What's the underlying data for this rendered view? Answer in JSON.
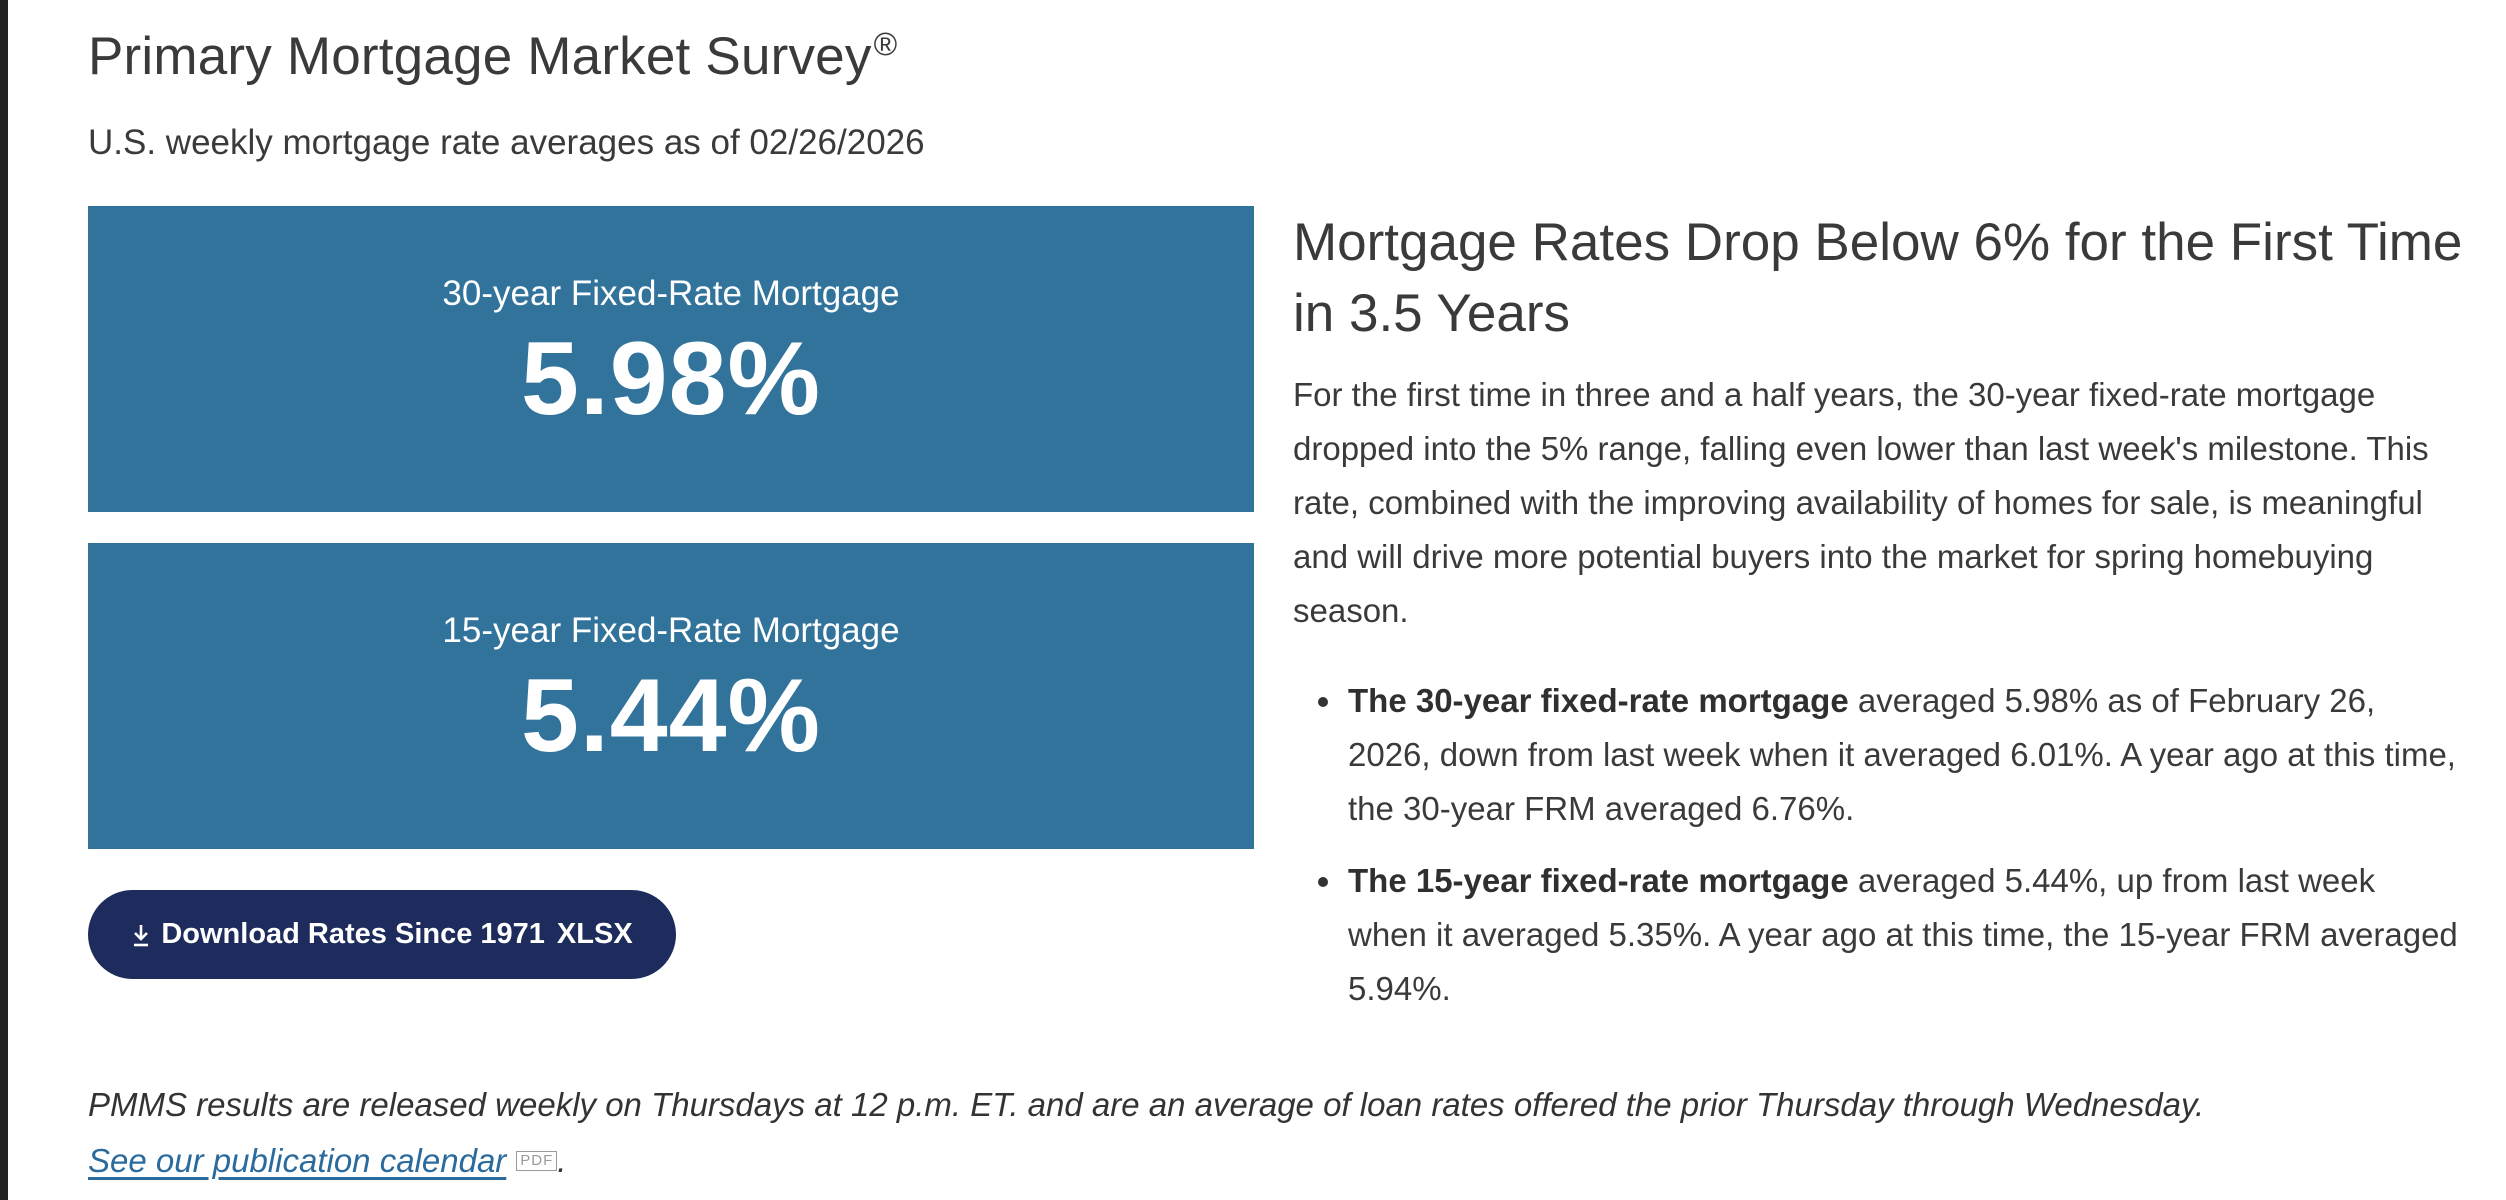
{
  "header": {
    "title": "Primary Mortgage Market Survey",
    "registered_mark": "®",
    "subtitle": "U.S. weekly mortgage rate averages as of 02/26/2026"
  },
  "rates": [
    {
      "label": "30-year Fixed-Rate Mortgage",
      "value": "5.98%"
    },
    {
      "label": "15-year Fixed-Rate Mortgage",
      "value": "5.44%"
    }
  ],
  "download": {
    "label": "Download Rates Since 1971",
    "format": "XLSX"
  },
  "article": {
    "heading": "Mortgage Rates Drop Below 6% for the First Time in 3.5 Years",
    "body": "For the first time in three and a half years, the 30-year fixed-rate mortgage dropped into the 5% range, falling even lower than last week's milestone. This rate, combined with the improving availability of homes for sale, is meaningful and will drive more potential buyers into the market for spring homebuying season.",
    "bullets": [
      {
        "bold": "The 30-year fixed-rate mortgage",
        "text": " averaged 5.98% as of February 26, 2026, down from last week when it averaged 6.01%. A year ago at this time, the 30-year FRM averaged 6.76%."
      },
      {
        "bold": "The 15-year fixed-rate mortgage",
        "text": " averaged 5.44%, up from last week when it averaged 5.35%. A year ago at this time, the 15-year FRM averaged 5.94%."
      }
    ]
  },
  "footer": {
    "note": "PMMS results are released weekly on Thursdays at 12 p.m. ET. and are an average of loan rates offered the prior Thursday through Wednesday.",
    "calendar_link": "See our publication calendar",
    "pdf_badge": "PDF",
    "trailing": "."
  },
  "colors": {
    "card_background": "#32739c",
    "button_background": "#1d2c5c",
    "link": "#2a6a9c"
  },
  "icons": [
    "download-icon",
    "pdf-icon"
  ]
}
